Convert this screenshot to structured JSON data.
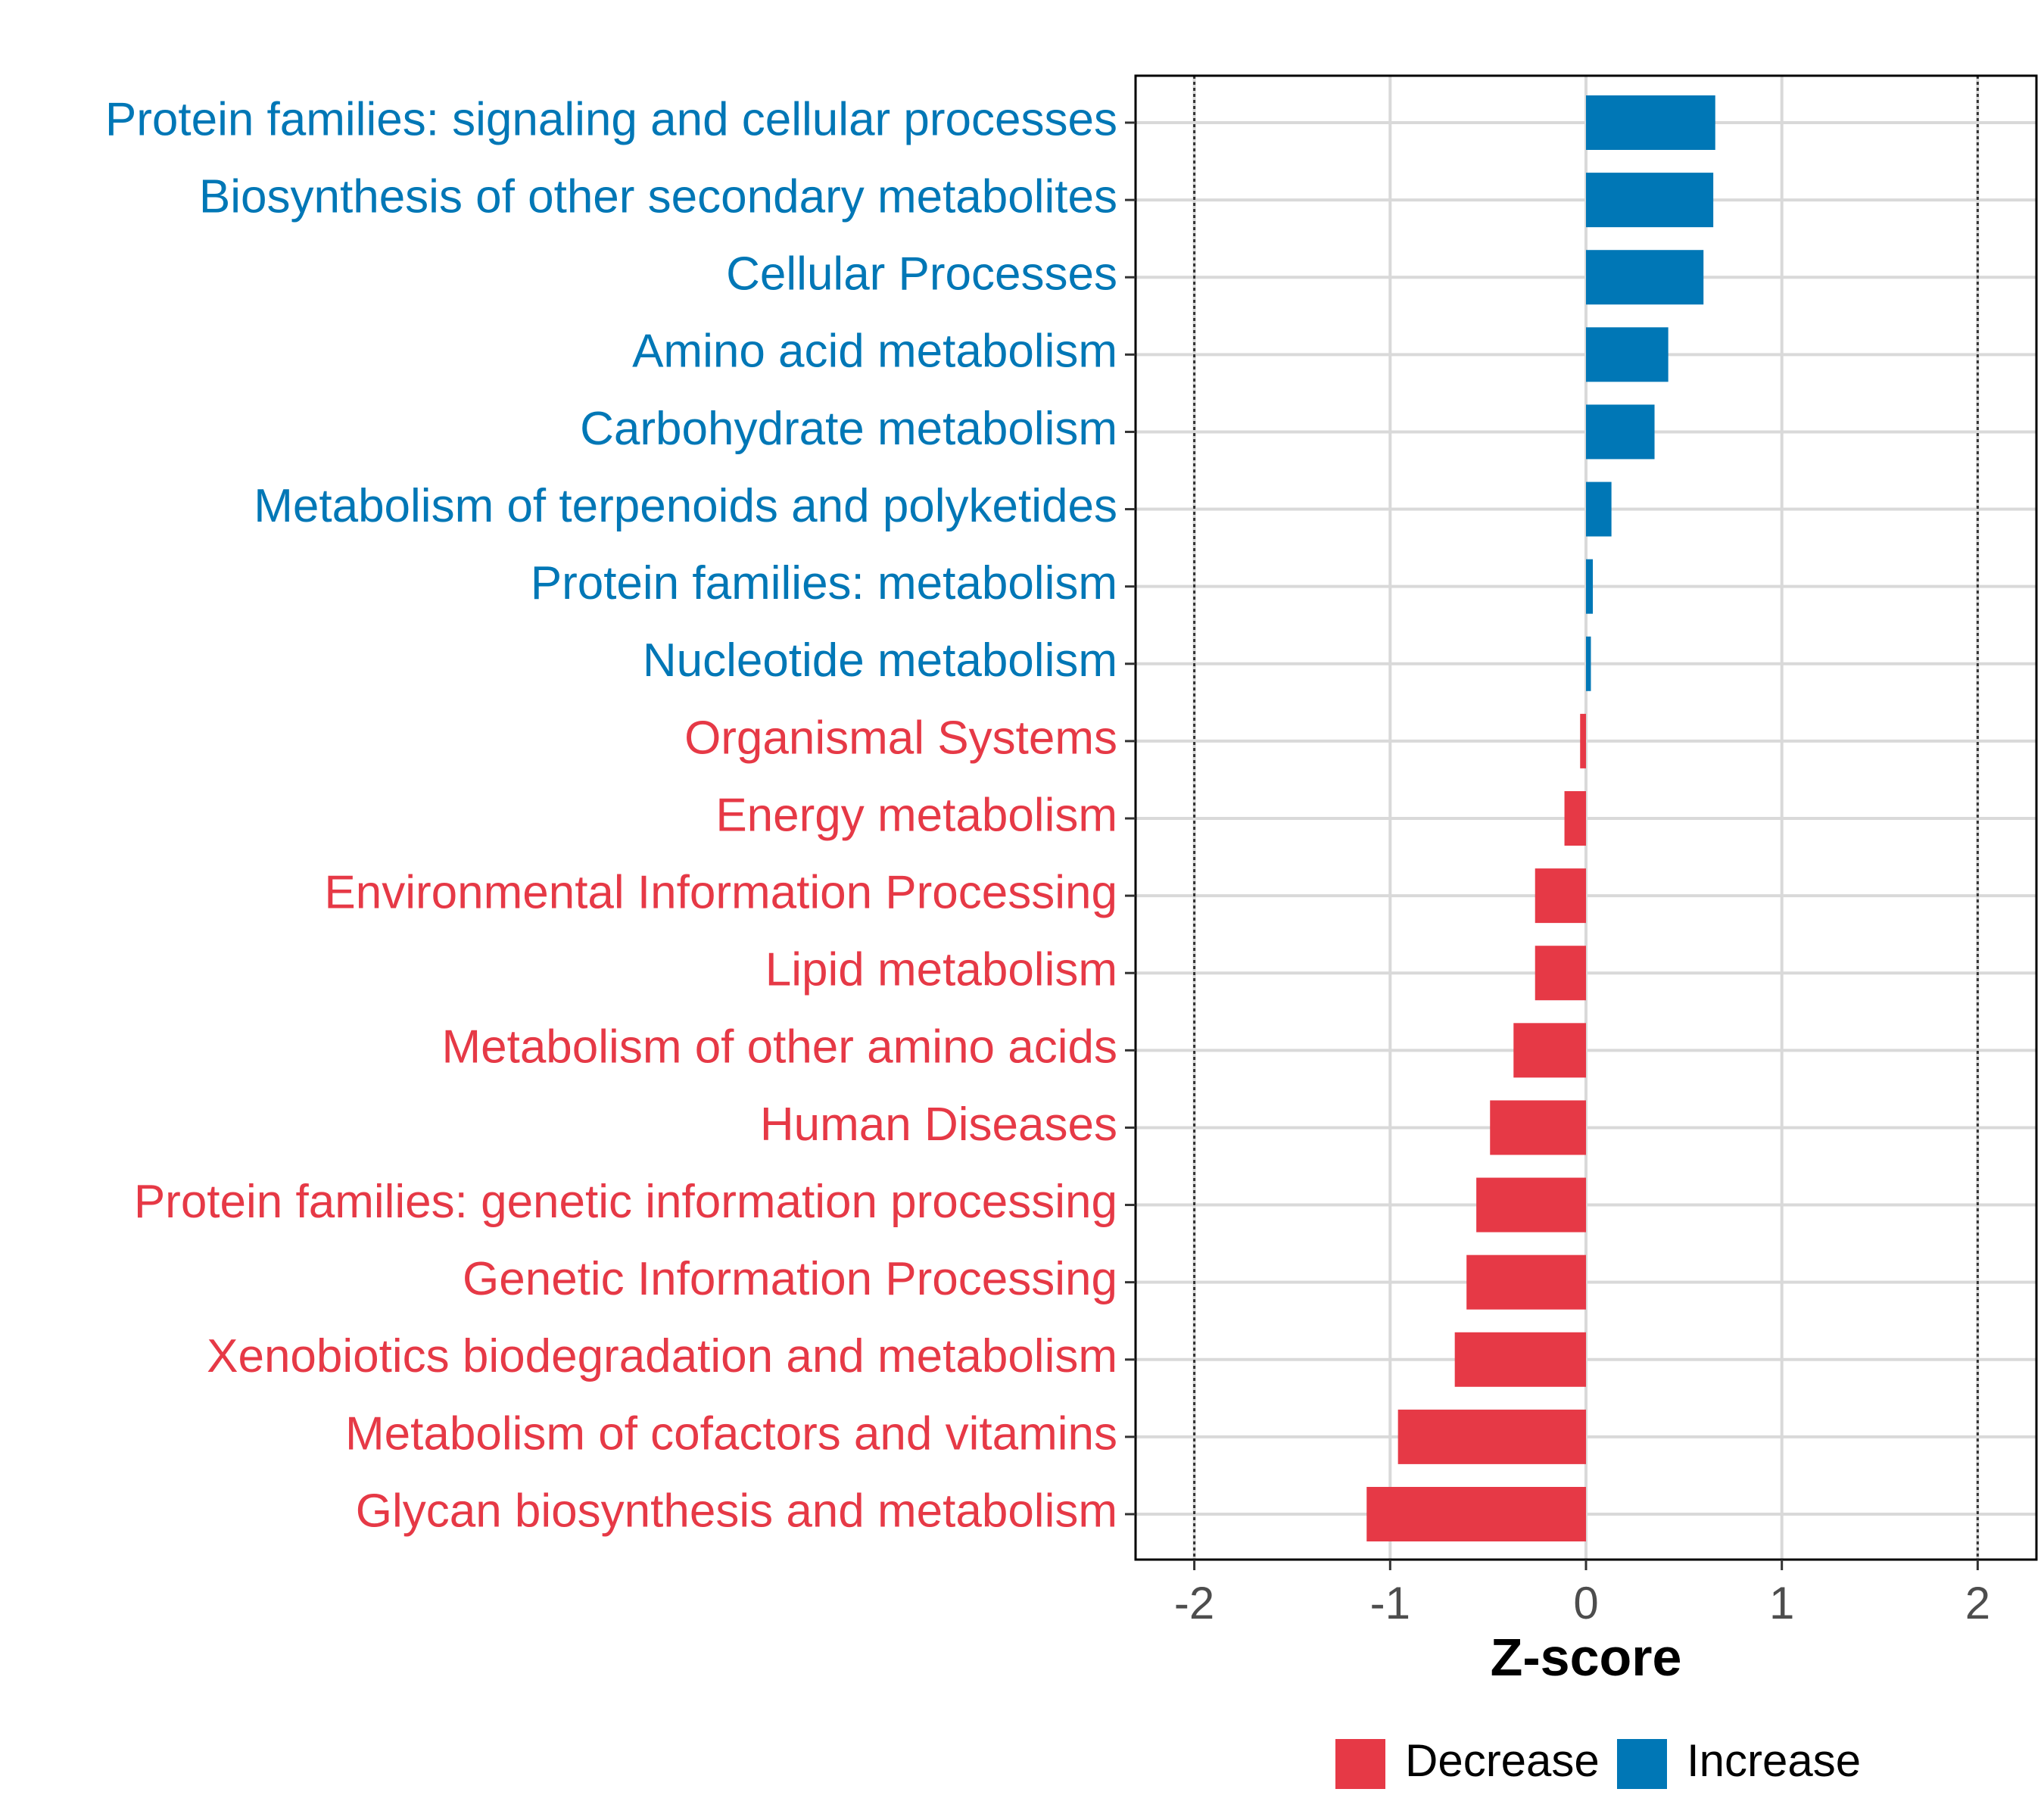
{
  "chart_data": {
    "type": "bar",
    "orientation": "horizontal",
    "xlabel": "Z-score",
    "xlim": [
      -2.3,
      2.3
    ],
    "x_ticks": [
      -2,
      -1,
      0,
      1,
      2
    ],
    "x_tick_labels": [
      "-2",
      "-1",
      "0",
      "1",
      "2"
    ],
    "reference_lines": [
      -2,
      2
    ],
    "grid": true,
    "categories": [
      "Protein families: signaling and cellular processes",
      "Biosynthesis of other secondary metabolites",
      "Cellular Processes",
      "Amino acid metabolism",
      "Carbohydrate metabolism",
      "Metabolism of terpenoids and polyketides",
      "Protein families: metabolism",
      "Nucleotide metabolism",
      "Organismal Systems",
      "Energy metabolism",
      "Environmental Information Processing",
      "Lipid metabolism",
      "Metabolism of other amino acids",
      "Human Diseases",
      "Protein families: genetic information processing",
      "Genetic Information Processing",
      "Xenobiotics biodegradation and metabolism",
      "Metabolism of cofactors and vitamins",
      "Glycan biosynthesis and metabolism"
    ],
    "values": [
      0.66,
      0.65,
      0.6,
      0.42,
      0.35,
      0.13,
      0.035,
      0.025,
      -0.03,
      -0.11,
      -0.26,
      -0.26,
      -0.37,
      -0.49,
      -0.56,
      -0.61,
      -0.67,
      -0.96,
      -1.12
    ],
    "groups": [
      "Increase",
      "Increase",
      "Increase",
      "Increase",
      "Increase",
      "Increase",
      "Increase",
      "Increase",
      "Decrease",
      "Decrease",
      "Decrease",
      "Decrease",
      "Decrease",
      "Decrease",
      "Decrease",
      "Decrease",
      "Decrease",
      "Decrease",
      "Decrease"
    ],
    "legend": {
      "position": "bottom",
      "entries": [
        {
          "label": "Decrease",
          "color": "#E63946"
        },
        {
          "label": "Increase",
          "color": "#0077B6"
        }
      ]
    }
  }
}
